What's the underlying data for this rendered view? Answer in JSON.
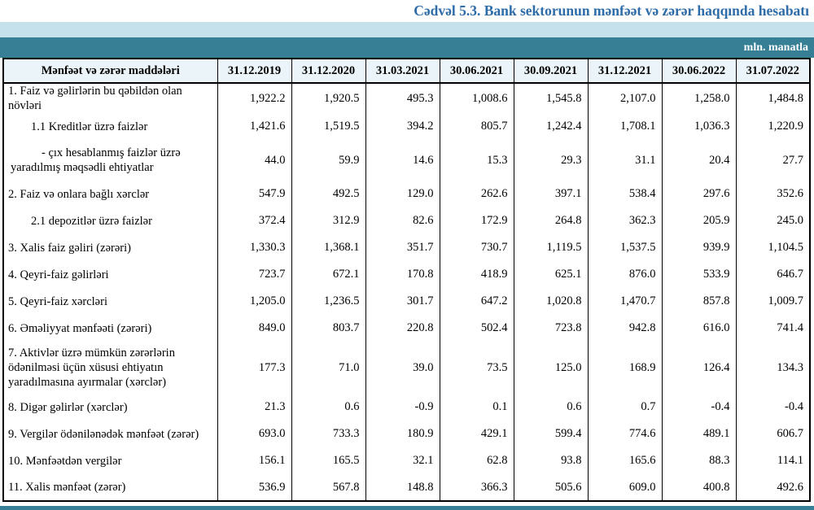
{
  "title": "Cədvəl 5.3. Bank sektorunun mənfəət və zərər haqqında hesabatı",
  "unit_label": "mln. manatla",
  "colors": {
    "title_blue": "#2d6ca9",
    "band_light_blue": "#c5e1eb",
    "band_teal": "#377f95",
    "header_bg": "#ebf4f8"
  },
  "table": {
    "item_header": "Mənfəət və zərər maddələri",
    "date_headers": [
      "31.12.2019",
      "31.12.2020",
      "31.03.2021",
      "30.06.2021",
      "30.09.2021",
      "31.12.2021",
      "30.06.2022",
      "31.07.2022"
    ],
    "rows": [
      {
        "label": "1. Faiz və gəlirlərin bu qəbildən olan növləri",
        "level": "main",
        "values": [
          "1,922.2",
          "1,920.5",
          "495.3",
          "1,008.6",
          "1,545.8",
          "2,107.0",
          "1,258.0",
          "1,484.8"
        ]
      },
      {
        "label": "1.1 Kreditlər üzrə faizlər",
        "level": "sub",
        "values": [
          "1,421.6",
          "1,519.5",
          "394.2",
          "805.7",
          "1,242.4",
          "1,708.1",
          "1,036.3",
          "1,220.9"
        ]
      },
      {
        "label": "-  çıx hesablanmış faizlər üzrə yaradılmış məqsədli ehtiyatlar",
        "level": "hanging",
        "values": [
          "44.0",
          "59.9",
          "14.6",
          "15.3",
          "29.3",
          "31.1",
          "20.4",
          "27.7"
        ]
      },
      {
        "label": "2. Faiz və onlara bağlı xərclər",
        "level": "main",
        "values": [
          "547.9",
          "492.5",
          "129.0",
          "262.6",
          "397.1",
          "538.4",
          "297.6",
          "352.6"
        ]
      },
      {
        "label": "2.1 depozitlər üzrə faizlər",
        "level": "sub",
        "values": [
          "372.4",
          "312.9",
          "82.6",
          "172.9",
          "264.8",
          "362.3",
          "205.9",
          "245.0"
        ]
      },
      {
        "label": "3. Xalis faiz gəliri (zərəri)",
        "level": "main",
        "values": [
          "1,330.3",
          "1,368.1",
          "351.7",
          "730.7",
          "1,119.5",
          "1,537.5",
          "939.9",
          "1,104.5"
        ]
      },
      {
        "label": "4. Qeyri-faiz gəlirləri",
        "level": "main",
        "values": [
          "723.7",
          "672.1",
          "170.8",
          "418.9",
          "625.1",
          "876.0",
          "533.9",
          "646.7"
        ]
      },
      {
        "label": "5. Qeyri-faiz xərcləri",
        "level": "main",
        "values": [
          "1,205.0",
          "1,236.5",
          "301.7",
          "647.2",
          "1,020.8",
          "1,470.7",
          "857.8",
          "1,009.7"
        ]
      },
      {
        "label": "6. Əməliyyat mənfəəti (zərəri)",
        "level": "main",
        "values": [
          "849.0",
          "803.7",
          "220.8",
          "502.4",
          "723.8",
          "942.8",
          "616.0",
          "741.4"
        ]
      },
      {
        "label": "7. Aktivlər üzrə mümkün zərərlərin ödənilməsi üçün xüsusi ehtiyatın yaradılmasına ayırmalar (xərclər)",
        "level": "multi",
        "values": [
          "177.3",
          "71.0",
          "39.0",
          "73.5",
          "125.0",
          "168.9",
          "126.4",
          "134.3"
        ]
      },
      {
        "label": "8. Digər gəlirlər (xərclər)",
        "level": "main",
        "values": [
          "21.3",
          "0.6",
          "-0.9",
          "0.1",
          "0.6",
          "0.7",
          "-0.4",
          "-0.4"
        ]
      },
      {
        "label": "9. Vergilər ödənilənədək mənfəət (zərər)",
        "level": "main",
        "values": [
          "693.0",
          "733.3",
          "180.9",
          "429.1",
          "599.4",
          "774.6",
          "489.1",
          "606.7"
        ]
      },
      {
        "label": "10. Mənfəətdən vergilər",
        "level": "main",
        "values": [
          "156.1",
          "165.5",
          "32.1",
          "62.8",
          "93.8",
          "165.6",
          "88.3",
          "114.1"
        ]
      },
      {
        "label": "11. Xalis mənfəət (zərər)",
        "level": "main",
        "values": [
          "536.9",
          "567.8",
          "148.8",
          "366.3",
          "505.6",
          "609.0",
          "400.8",
          "492.6"
        ]
      }
    ]
  }
}
